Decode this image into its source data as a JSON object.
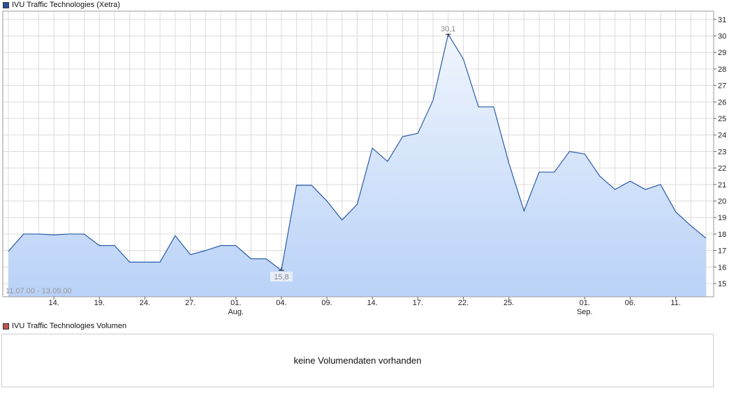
{
  "colors": {
    "price_swatch": "#2b4f9e",
    "volume_swatch": "#c0504d",
    "line": "#2a5ba8",
    "fill_top": "#f0f5fd",
    "fill_bottom": "#b9d2f7",
    "grid": "#dcdcdc"
  },
  "volume": {
    "legend": "IVU Traffic Technologies Volumen",
    "message": "keine Volumendaten vorhanden"
  },
  "chart_data": {
    "type": "area",
    "title": "IVU Traffic Technologies (Xetra)",
    "range_label": "11.07.00 - 13.09.00",
    "xlabel": "",
    "ylabel": "",
    "ylim": [
      14.2,
      31.5
    ],
    "yticks": [
      15,
      16,
      17,
      18,
      19,
      20,
      21,
      22,
      23,
      24,
      25,
      26,
      27,
      28,
      29,
      30,
      31
    ],
    "x_ticks": [
      {
        "label": "14.",
        "sub": ""
      },
      {
        "label": "19.",
        "sub": ""
      },
      {
        "label": "24.",
        "sub": ""
      },
      {
        "label": "27.",
        "sub": ""
      },
      {
        "label": "01.",
        "sub": "Aug."
      },
      {
        "label": "04.",
        "sub": ""
      },
      {
        "label": "09.",
        "sub": ""
      },
      {
        "label": "14.",
        "sub": ""
      },
      {
        "label": "17.",
        "sub": ""
      },
      {
        "label": "22.",
        "sub": ""
      },
      {
        "label": "25.",
        "sub": ""
      },
      {
        "label": "01.",
        "sub": "Sep."
      },
      {
        "label": "06.",
        "sub": ""
      },
      {
        "label": "11.",
        "sub": ""
      }
    ],
    "x_tick_index": [
      3,
      6,
      9,
      12,
      15,
      18,
      21,
      24,
      27,
      30,
      33,
      38,
      41,
      44
    ],
    "grid": true,
    "annotations": {
      "max": {
        "label": "30,1",
        "index": 29,
        "value": 30.1
      },
      "min": {
        "label": "15,8",
        "index": 18,
        "value": 15.8
      }
    },
    "values": [
      16.95,
      18.0,
      18.0,
      17.95,
      18.0,
      18.0,
      17.3,
      17.3,
      16.3,
      16.3,
      16.3,
      17.9,
      16.75,
      17.0,
      17.3,
      17.3,
      16.5,
      16.5,
      15.8,
      20.95,
      20.95,
      20.0,
      18.85,
      19.8,
      23.2,
      22.4,
      23.9,
      24.1,
      26.1,
      30.1,
      28.6,
      25.7,
      25.7,
      22.3,
      19.4,
      21.75,
      21.75,
      23.0,
      22.85,
      21.5,
      20.7,
      21.2,
      20.7,
      21.0,
      19.35,
      18.5,
      17.75
    ]
  }
}
